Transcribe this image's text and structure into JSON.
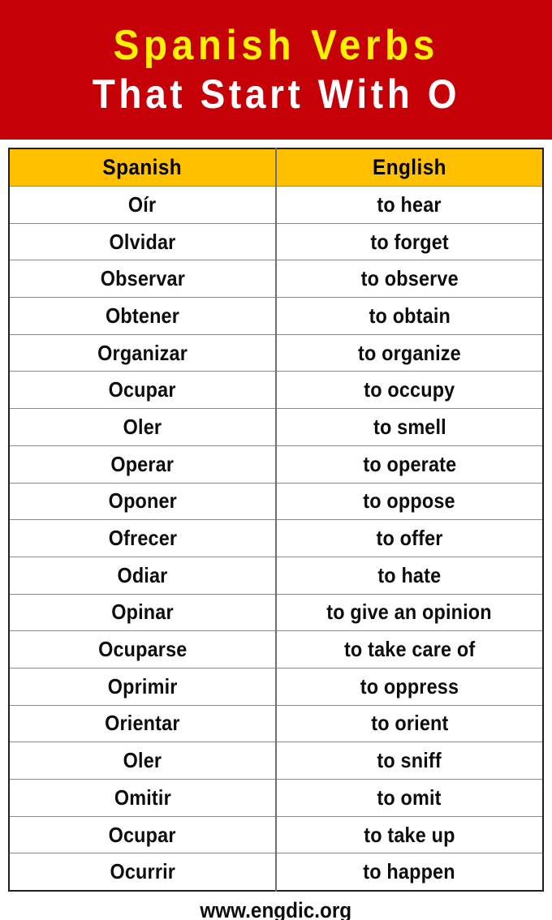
{
  "banner": {
    "title_line1": "Spanish Verbs",
    "title_line2": "That Start With O",
    "bg_color": "#C50006",
    "line1_color": "#FFF100",
    "line2_color": "#FFFFFF"
  },
  "table": {
    "headers": [
      "Spanish",
      "English"
    ],
    "header_bg_color": "#FFC000",
    "rows": [
      [
        "Oír",
        "to hear"
      ],
      [
        "Olvidar",
        "to forget"
      ],
      [
        "Observar",
        "to observe"
      ],
      [
        "Obtener",
        "to obtain"
      ],
      [
        "Organizar",
        "to organize"
      ],
      [
        "Ocupar",
        "to occupy"
      ],
      [
        "Oler",
        "to smell"
      ],
      [
        "Operar",
        "to operate"
      ],
      [
        "Oponer",
        "to oppose"
      ],
      [
        "Ofrecer",
        "to offer"
      ],
      [
        "Odiar",
        "to hate"
      ],
      [
        "Opinar",
        "to give an opinion"
      ],
      [
        "Ocuparse",
        "to take care of"
      ],
      [
        "Oprimir",
        "to oppress"
      ],
      [
        "Orientar",
        "to orient"
      ],
      [
        "Oler",
        "to sniff"
      ],
      [
        "Omitir",
        "to omit"
      ],
      [
        "Ocupar",
        "to take up"
      ],
      [
        "Ocurrir",
        "to happen"
      ]
    ]
  },
  "footer": {
    "website": "www.engdic.org"
  }
}
